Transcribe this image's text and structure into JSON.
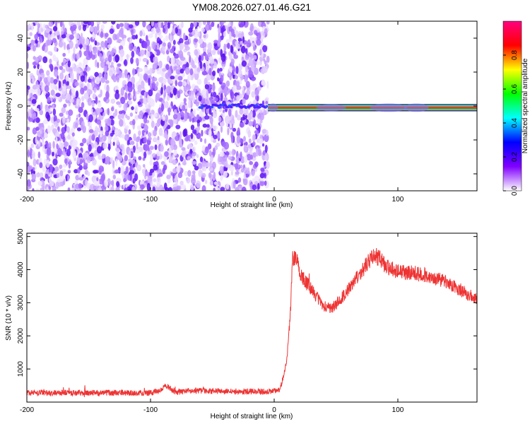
{
  "title": "YM08.2026.027.01.46.G21",
  "chart_data": [
    {
      "type": "heatmap",
      "xlabel": "Height of straight line (km)",
      "ylabel": "Frequency (Hz)",
      "xlim": [
        -200,
        164
      ],
      "ylim": [
        -50,
        50
      ],
      "xticks": [
        -200,
        -100,
        0,
        100
      ],
      "yticks": [
        -40,
        -20,
        0,
        20,
        40
      ],
      "noise_region_x": [
        -200,
        -5
      ],
      "signal": [
        {
          "x_start": -60,
          "x_end": -5,
          "freq": 0,
          "amplitude": 0.3
        },
        {
          "x_start": -5,
          "x_end": 164,
          "freq": -1,
          "amplitude": 0.9
        }
      ],
      "colorbar": {
        "label": "Normalized spectral amplitude",
        "range": [
          0,
          1
        ],
        "ticks": [
          "0.0",
          "0.2",
          "0.4",
          "0.6",
          "0.8"
        ],
        "colors": [
          "#ffffff",
          "#8000ff",
          "#0000ff",
          "#00ffff",
          "#00ff00",
          "#ffff00",
          "#ff0000",
          "#ff0080"
        ]
      }
    },
    {
      "type": "line",
      "xlabel": "Height of straight line (km)",
      "ylabel": "SNR (10 * v/v)",
      "xlim": [
        -200,
        164
      ],
      "ylim": [
        0,
        5100
      ],
      "xticks": [
        -200,
        -100,
        0,
        100
      ],
      "yticks": [
        1000,
        2000,
        3000,
        4000,
        5000
      ],
      "color": "#ee3333",
      "x": [
        -200,
        -100,
        -92,
        -88,
        -80,
        -60,
        -40,
        -20,
        0,
        5,
        10,
        13,
        15,
        18,
        22,
        30,
        40,
        45,
        50,
        60,
        70,
        80,
        85,
        90,
        100,
        110,
        120,
        130,
        140,
        150,
        164
      ],
      "values": [
        280,
        280,
        340,
        520,
        300,
        350,
        320,
        320,
        320,
        400,
        1200,
        2600,
        4400,
        4300,
        3800,
        3400,
        2900,
        2800,
        2950,
        3400,
        3900,
        4450,
        4350,
        4100,
        3950,
        3900,
        3850,
        3750,
        3600,
        3400,
        3100
      ]
    }
  ]
}
